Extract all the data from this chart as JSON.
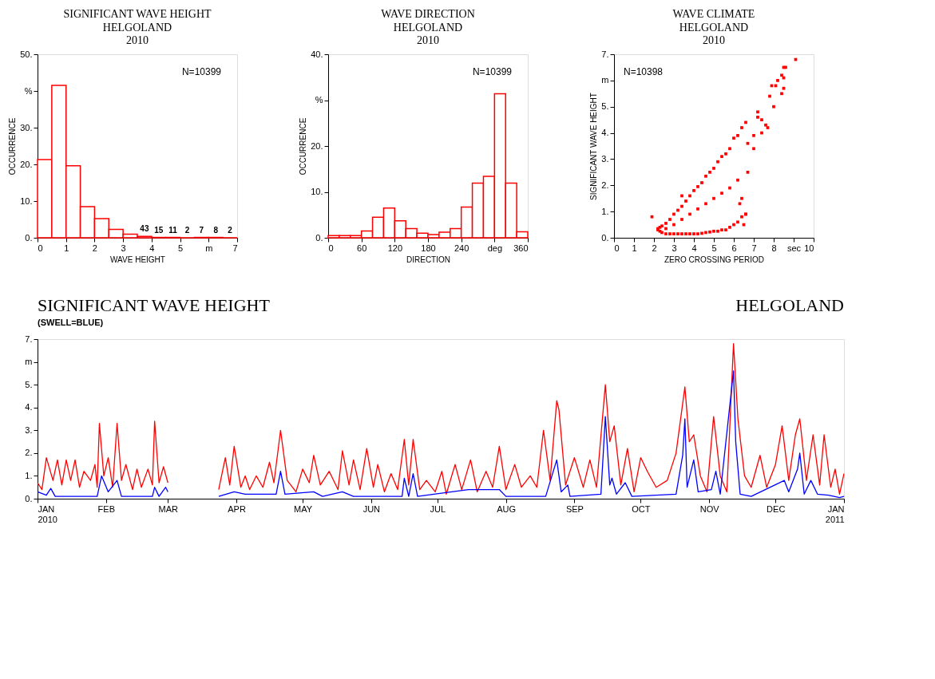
{
  "chart_data": [
    {
      "type": "histogram",
      "title": "SIGNIFICANT WAVE HEIGHT",
      "subtitle": "HELGOLAND\n2010",
      "xlabel": "WAVE HEIGHT",
      "ylabel": "OCCURRENCE",
      "bins": [
        0,
        0.5,
        1,
        1.5,
        2,
        2.5,
        3,
        3.5,
        4,
        4.5,
        5,
        5.5,
        6,
        6.5,
        7
      ],
      "values": [
        21.3,
        41.5,
        19.6,
        8.5,
        5.2,
        2.3,
        1.0,
        0.4,
        0.1,
        0.1,
        0.0,
        0.1,
        0.1,
        0.0
      ],
      "color": "#ff0000",
      "xlim": [
        0,
        7
      ],
      "xticks": [
        0,
        1,
        2,
        3,
        4,
        5,
        {
          "value": 6,
          "label": "m"
        },
        7
      ],
      "ylim": [
        0,
        50
      ],
      "yticks": [
        {
          "value": 0,
          "label": "0."
        },
        {
          "value": 10,
          "label": "10."
        },
        {
          "value": 20,
          "label": "20."
        },
        {
          "value": 30,
          "label": "30."
        },
        {
          "value": 40,
          "label": "%"
        },
        {
          "value": 50,
          "label": "50."
        }
      ],
      "annotations": [
        "N=10399",
        {
          "text": "43",
          "x": 3.75,
          "y": 0.4
        },
        {
          "text": "15",
          "x": 4.25,
          "y": 0.1
        },
        {
          "text": "11",
          "x": 4.75,
          "y": 0.1
        },
        {
          "text": "2",
          "x": 5.25,
          "y": 0.0
        },
        {
          "text": "7",
          "x": 5.75,
          "y": 0.1
        },
        {
          "text": "8",
          "x": 6.25,
          "y": 0.1
        },
        {
          "text": "2",
          "x": 6.75,
          "y": 0.0
        }
      ],
      "grid": false
    },
    {
      "type": "histogram",
      "title": "WAVE DIRECTION",
      "subtitle": "HELGOLAND\n2010",
      "xlabel": "DIRECTION",
      "ylabel": "OCCURRENCE",
      "bins": [
        0,
        20,
        40,
        60,
        80,
        100,
        120,
        140,
        160,
        180,
        200,
        220,
        240,
        260,
        280,
        300,
        320,
        340,
        360
      ],
      "values": [
        0.5,
        0.5,
        0.5,
        1.5,
        4.5,
        6.5,
        3.7,
        2.0,
        1.0,
        0.7,
        1.2,
        2.0,
        6.7,
        11.9,
        13.4,
        31.4,
        11.9,
        1.3
      ],
      "color": "#ff0000",
      "xlim": [
        0,
        360
      ],
      "xticks": [
        0,
        60,
        120,
        180,
        240,
        {
          "value": 300,
          "label": "deg"
        },
        360
      ],
      "ylim": [
        0,
        40
      ],
      "yticks": [
        {
          "value": 0,
          "label": "0."
        },
        {
          "value": 10,
          "label": "10."
        },
        {
          "value": 20,
          "label": "20."
        },
        {
          "value": 30,
          "label": "%"
        },
        {
          "value": 40,
          "label": "40."
        }
      ],
      "annotations": [
        "N=10399"
      ],
      "grid": false
    },
    {
      "type": "scatter",
      "title": "WAVE CLIMATE",
      "subtitle": "HELGOLAND\n2010",
      "xlabel": "ZERO CROSSING PERIOD",
      "ylabel": "SIGNIFICANT WAVE HEIGHT",
      "x": [
        2.2,
        2.2,
        2.3,
        2.3,
        2.4,
        2.4,
        2.6,
        2.6,
        2.8,
        2.8,
        3.0,
        3.0,
        3.2,
        3.2,
        3.4,
        3.4,
        3.6,
        3.6,
        3.8,
        3.8,
        4.0,
        4.0,
        4.2,
        4.2,
        4.4,
        4.4,
        4.6,
        4.6,
        4.8,
        4.8,
        5.0,
        5.0,
        5.2,
        5.2,
        5.4,
        5.4,
        5.6,
        5.6,
        5.8,
        5.8,
        6.0,
        6.0,
        6.2,
        6.2,
        6.4,
        6.4,
        6.6,
        6.6,
        6.7,
        6.7,
        2.6,
        3.0,
        3.4,
        3.8,
        4.2,
        4.6,
        5.0,
        5.4,
        5.8,
        6.2,
        6.4,
        6.5,
        1.9,
        3.4,
        7.0,
        7.0,
        7.2,
        7.2,
        7.4,
        7.4,
        7.6,
        7.7,
        7.8,
        7.9,
        8.0,
        8.1,
        8.2,
        8.4,
        8.4,
        8.5,
        8.5,
        8.6,
        8.5,
        9.1,
        6.3,
        6.6
      ],
      "values": [
        0.3,
        0.35,
        0.25,
        0.4,
        0.2,
        0.45,
        0.15,
        0.55,
        0.15,
        0.7,
        0.15,
        0.9,
        0.15,
        1.05,
        0.15,
        1.2,
        0.15,
        1.4,
        0.15,
        1.6,
        0.15,
        1.8,
        0.15,
        1.95,
        0.17,
        2.1,
        0.2,
        2.35,
        0.22,
        2.5,
        0.25,
        2.65,
        0.25,
        2.9,
        0.3,
        3.1,
        0.3,
        3.2,
        0.4,
        3.4,
        0.5,
        3.8,
        0.6,
        3.9,
        0.8,
        4.2,
        0.9,
        4.4,
        3.6,
        2.5,
        0.35,
        0.5,
        0.7,
        0.9,
        1.1,
        1.3,
        1.5,
        1.7,
        1.9,
        2.2,
        1.5,
        0.5,
        0.8,
        1.6,
        3.4,
        3.9,
        4.6,
        4.8,
        4.0,
        4.5,
        4.3,
        4.2,
        5.4,
        5.8,
        5.0,
        5.8,
        6.0,
        5.5,
        6.2,
        6.5,
        5.7,
        6.5,
        6.1,
        6.8,
        1.3,
        0.9
      ],
      "color": "#ff0000",
      "marker": "square",
      "xlim": [
        0,
        10
      ],
      "xticks": [
        0,
        1,
        2,
        3,
        4,
        5,
        6,
        7,
        8,
        {
          "value": 9,
          "label": "sec"
        },
        10
      ],
      "ylim": [
        0,
        7
      ],
      "yticks": [
        {
          "value": 0,
          "label": "0."
        },
        {
          "value": 1,
          "label": "1."
        },
        {
          "value": 2,
          "label": "2."
        },
        {
          "value": 3,
          "label": "3."
        },
        {
          "value": 4,
          "label": "4."
        },
        {
          "value": 5,
          "label": "5."
        },
        {
          "value": 6,
          "label": "m"
        },
        {
          "value": 7,
          "label": "7."
        }
      ],
      "annotations": [
        "N=10398"
      ],
      "grid": false
    },
    {
      "type": "line",
      "title": "SIGNIFICANT WAVE HEIGHT",
      "subtitle": "(SWELL=BLUE)",
      "annotations": [
        "HELGOLAND"
      ],
      "grid": false,
      "line_style": "solid",
      "xlim": [
        "2010-01-01",
        "2011-01-01"
      ],
      "xticks": [
        {
          "value": "2010-01-01",
          "label": "JAN\n2010"
        },
        {
          "value": "2010-02-01",
          "label": "FEB"
        },
        {
          "value": "2010-03-01",
          "label": "MAR"
        },
        {
          "value": "2010-04-01",
          "label": "APR"
        },
        {
          "value": "2010-05-01",
          "label": "MAY"
        },
        {
          "value": "2010-06-01",
          "label": "JUN"
        },
        {
          "value": "2010-07-01",
          "label": "JUL"
        },
        {
          "value": "2010-08-01",
          "label": "AUG"
        },
        {
          "value": "2010-09-01",
          "label": "SEP"
        },
        {
          "value": "2010-10-01",
          "label": "OCT"
        },
        {
          "value": "2010-11-01",
          "label": "NOV"
        },
        {
          "value": "2010-12-01",
          "label": "DEC"
        },
        {
          "value": "2011-01-01",
          "label": "JAN\n2011"
        }
      ],
      "ylim": [
        0,
        7
      ],
      "yticks": [
        {
          "value": 0,
          "label": "0."
        },
        {
          "value": 1,
          "label": "1."
        },
        {
          "value": 2,
          "label": "2."
        },
        {
          "value": 3,
          "label": "3."
        },
        {
          "value": 4,
          "label": "4."
        },
        {
          "value": 5,
          "label": "5."
        },
        {
          "value": 6,
          "label": "m"
        },
        {
          "value": 7,
          "label": "7."
        }
      ],
      "series": [
        {
          "color": "#ff0000",
          "x": [
            "2010-01-01",
            "2010-01-03",
            "2010-01-05",
            "2010-01-08",
            "2010-01-10",
            "2010-01-12",
            "2010-01-14",
            "2010-01-16",
            "2010-01-18",
            "2010-01-20",
            "2010-01-22",
            "2010-01-25",
            "2010-01-27",
            "2010-01-28",
            "2010-01-29",
            "2010-01-31",
            "2010-02-02",
            "2010-02-04",
            "2010-02-06",
            "2010-02-08",
            "2010-02-10",
            "2010-02-13",
            "2010-02-15",
            "2010-02-17",
            "2010-02-20",
            "2010-02-22",
            "2010-02-23",
            "2010-02-25",
            "2010-02-27",
            "2010-03-01",
            "2010-03-10",
            "2010-03-24",
            "2010-03-27",
            "2010-03-29",
            "2010-03-31",
            "2010-04-03",
            "2010-04-05",
            "2010-04-07",
            "2010-04-10",
            "2010-04-13",
            "2010-04-16",
            "2010-04-18",
            "2010-04-21",
            "2010-04-24",
            "2010-04-28",
            "2010-05-01",
            "2010-05-04",
            "2010-05-06",
            "2010-05-09",
            "2010-05-13",
            "2010-05-17",
            "2010-05-19",
            "2010-05-22",
            "2010-05-24",
            "2010-05-27",
            "2010-05-30",
            "2010-06-02",
            "2010-06-04",
            "2010-06-07",
            "2010-06-10",
            "2010-06-13",
            "2010-06-16",
            "2010-06-18",
            "2010-06-20",
            "2010-06-23",
            "2010-06-26",
            "2010-06-30",
            "2010-07-03",
            "2010-07-05",
            "2010-07-09",
            "2010-07-12",
            "2010-07-16",
            "2010-07-19",
            "2010-07-23",
            "2010-07-26",
            "2010-07-29",
            "2010-08-01",
            "2010-08-05",
            "2010-08-08",
            "2010-08-12",
            "2010-08-15",
            "2010-08-18",
            "2010-08-21",
            "2010-08-24",
            "2010-08-25",
            "2010-08-28",
            "2010-09-01",
            "2010-09-05",
            "2010-09-08",
            "2010-09-11",
            "2010-09-15",
            "2010-09-17",
            "2010-09-19",
            "2010-09-22",
            "2010-09-25",
            "2010-09-28",
            "2010-10-01",
            "2010-10-04",
            "2010-10-08",
            "2010-10-13",
            "2010-10-17",
            "2010-10-21",
            "2010-10-23",
            "2010-10-25",
            "2010-10-28",
            "2010-10-31",
            "2010-11-03",
            "2010-11-06",
            "2010-11-09",
            "2010-11-12",
            "2010-11-14",
            "2010-11-17",
            "2010-11-20",
            "2010-11-24",
            "2010-11-27",
            "2010-12-01",
            "2010-12-04",
            "2010-12-07",
            "2010-12-10",
            "2010-12-12",
            "2010-12-15",
            "2010-12-18",
            "2010-12-21",
            "2010-12-23",
            "2010-12-26",
            "2010-12-28",
            "2010-12-30",
            "2011-01-01"
          ],
          "values": [
            0.7,
            0.4,
            1.8,
            0.8,
            1.7,
            0.6,
            1.7,
            0.8,
            1.7,
            0.5,
            1.2,
            0.8,
            1.5,
            0.5,
            3.3,
            1.0,
            1.8,
            0.5,
            3.3,
            0.8,
            1.5,
            0.4,
            1.3,
            0.5,
            1.3,
            0.6,
            3.4,
            0.7,
            1.4,
            0.7,
            null,
            0.4,
            1.8,
            0.6,
            2.3,
            0.5,
            1.0,
            0.4,
            1.0,
            0.5,
            1.6,
            0.7,
            3.0,
            0.8,
            0.3,
            1.3,
            0.7,
            1.9,
            0.6,
            1.2,
            0.4,
            2.1,
            0.6,
            1.7,
            0.4,
            2.2,
            0.5,
            1.5,
            0.3,
            1.1,
            0.4,
            2.6,
            0.6,
            2.6,
            0.4,
            0.8,
            0.3,
            1.2,
            0.2,
            1.5,
            0.4,
            1.7,
            0.3,
            1.2,
            0.5,
            2.3,
            0.4,
            1.5,
            0.5,
            1.0,
            0.5,
            3.0,
            0.8,
            4.3,
            3.9,
            0.6,
            1.8,
            0.5,
            1.7,
            0.5,
            5.0,
            2.5,
            3.2,
            0.6,
            2.2,
            0.3,
            1.8,
            1.2,
            0.5,
            0.8,
            2.0,
            4.9,
            2.5,
            2.8,
            1.0,
            0.3,
            3.6,
            1.0,
            0.3,
            6.8,
            3.5,
            1.0,
            0.5,
            1.9,
            0.5,
            1.5,
            3.2,
            0.8,
            2.8,
            3.5,
            0.8,
            2.8,
            0.6,
            2.8,
            0.5,
            1.3,
            0.2,
            1.1
          ]
        },
        {
          "color": "#0000ff",
          "x": [
            "2010-01-01",
            "2010-01-05",
            "2010-01-07",
            "2010-01-09",
            "2010-01-28",
            "2010-01-30",
            "2010-02-02",
            "2010-02-06",
            "2010-02-08",
            "2010-02-22",
            "2010-02-23",
            "2010-02-25",
            "2010-02-28",
            "2010-03-01",
            "2010-03-10",
            "2010-03-24",
            "2010-03-31",
            "2010-04-05",
            "2010-04-19",
            "2010-04-21",
            "2010-04-23",
            "2010-05-06",
            "2010-05-10",
            "2010-05-19",
            "2010-05-24",
            "2010-06-15",
            "2010-06-16",
            "2010-06-18",
            "2010-06-20",
            "2010-06-22",
            "2010-07-15",
            "2010-07-29",
            "2010-08-01",
            "2010-08-19",
            "2010-08-24",
            "2010-08-26",
            "2010-08-29",
            "2010-08-30",
            "2010-09-13",
            "2010-09-15",
            "2010-09-17",
            "2010-09-18",
            "2010-09-20",
            "2010-09-24",
            "2010-09-27",
            "2010-10-17",
            "2010-10-20",
            "2010-10-21",
            "2010-10-22",
            "2010-10-25",
            "2010-10-27",
            "2010-11-02",
            "2010-11-04",
            "2010-11-06",
            "2010-11-12",
            "2010-11-13",
            "2010-11-15",
            "2010-11-20",
            "2010-12-05",
            "2010-12-07",
            "2010-12-11",
            "2010-12-12",
            "2010-12-14",
            "2010-12-17",
            "2010-12-20",
            "2010-12-25",
            "2010-12-30",
            "2011-01-01"
          ],
          "values": [
            0.3,
            0.15,
            0.45,
            0.1,
            0.1,
            1.0,
            0.3,
            0.8,
            0.1,
            0.1,
            0.5,
            0.1,
            0.5,
            0.3,
            null,
            0.1,
            0.3,
            0.2,
            0.2,
            1.2,
            0.2,
            0.3,
            0.1,
            0.3,
            0.1,
            0.1,
            0.9,
            0.1,
            1.1,
            0.1,
            0.4,
            0.4,
            0.1,
            0.1,
            1.7,
            0.3,
            0.6,
            0.1,
            0.2,
            3.6,
            0.6,
            0.9,
            0.2,
            0.7,
            0.1,
            0.2,
            1.9,
            3.5,
            0.5,
            1.7,
            0.3,
            0.4,
            1.2,
            0.2,
            5.6,
            2.5,
            0.2,
            0.1,
            0.8,
            0.3,
            1.3,
            2.0,
            0.2,
            0.8,
            0.2,
            0.15,
            0.05,
            0.1
          ]
        }
      ]
    }
  ]
}
